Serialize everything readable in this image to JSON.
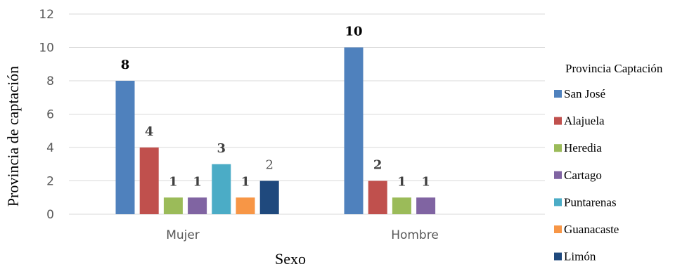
{
  "chart_data": {
    "type": "bar",
    "categories": [
      "Mujer",
      "Hombre"
    ],
    "series": [
      {
        "name": "San José",
        "color": "#4f81bd",
        "values": [
          8,
          10
        ],
        "labels": [
          "8",
          "10"
        ],
        "label_style": "bold"
      },
      {
        "name": "Alajuela",
        "color": "#c0504d",
        "values": [
          4,
          2
        ],
        "labels": [
          "4",
          "2"
        ],
        "label_style": "bold"
      },
      {
        "name": "Heredia",
        "color": "#9bbb59",
        "values": [
          1,
          1
        ],
        "labels": [
          "1",
          "1"
        ],
        "label_style": "bold"
      },
      {
        "name": "Cartago",
        "color": "#8064a2",
        "values": [
          1,
          1
        ],
        "labels": [
          "1",
          "1"
        ],
        "label_style": "bold"
      },
      {
        "name": "Puntarenas",
        "color": "#4bacc6",
        "values": [
          3,
          null
        ],
        "labels": [
          "3",
          ""
        ],
        "label_style": "bold"
      },
      {
        "name": "Guanacaste",
        "color": "#f79646",
        "values": [
          1,
          null
        ],
        "labels": [
          "1",
          ""
        ],
        "label_style": "bold"
      },
      {
        "name": "Limón",
        "color": "#1f497d",
        "values": [
          2,
          null
        ],
        "labels": [
          "2",
          ""
        ],
        "label_style": "plain"
      }
    ],
    "xlabel": "Sexo",
    "ylabel": "Provincia de captación",
    "ylim": [
      0,
      12
    ],
    "yticks": [
      "0",
      "2",
      "4",
      "6",
      "8",
      "10",
      "12"
    ],
    "grid": true,
    "legend": {
      "title": "Provincia Captación",
      "position": "right"
    }
  }
}
